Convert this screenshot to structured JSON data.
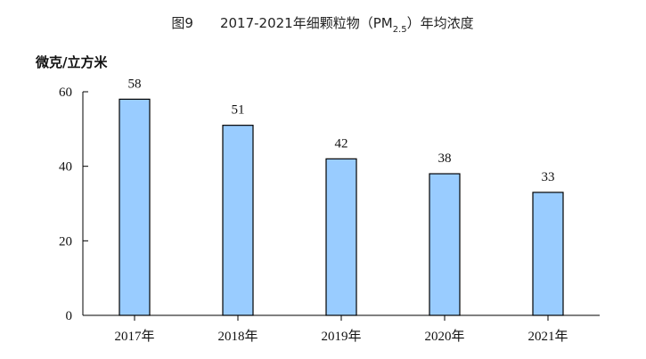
{
  "header": {
    "figure_label": "图9",
    "title_main": "2017-2021年细颗粒物（PM",
    "title_sub": "2.5",
    "title_tail": "）年均浓度"
  },
  "chart_data": {
    "type": "bar",
    "title": "图9    2017-2021年细颗粒物（PM2.5）年均浓度",
    "ylabel": "微克/立方米",
    "xlabel": "",
    "categories": [
      "2017年",
      "2018年",
      "2019年",
      "2020年",
      "2021年"
    ],
    "values": [
      58,
      51,
      42,
      38,
      33
    ],
    "value_labels": [
      "58",
      "51",
      "42",
      "38",
      "33"
    ],
    "ylim": [
      0,
      60
    ],
    "yticks": [
      0,
      20,
      40,
      60
    ],
    "ytick_labels": [
      "0",
      "20",
      "40",
      "60"
    ],
    "grid": false,
    "legend": "none",
    "bar_color": "#99ccff",
    "bar_stroke": "#000000"
  }
}
